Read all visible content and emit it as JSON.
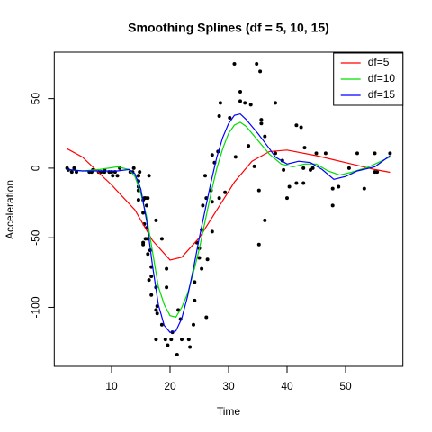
{
  "chart_data": {
    "type": "scatter",
    "title": "Smoothing Splines (df = 5, 10, 15)",
    "x_label": "Time",
    "y_label": "Acceleration",
    "xlim": [
      0.2,
      59.8
    ],
    "ylim": [
      -142.4,
      83.4
    ],
    "xticks": [
      10,
      20,
      30,
      40,
      50
    ],
    "yticks": [
      -100,
      -50,
      0,
      50
    ],
    "legend": "topright",
    "point_color": "#000000",
    "points": {
      "x": [
        2.4,
        2.6,
        3.2,
        3.6,
        4.0,
        6.2,
        6.6,
        6.8,
        7.8,
        8.2,
        8.8,
        8.8,
        9.6,
        10.0,
        10.2,
        10.6,
        11.0,
        11.4,
        13.2,
        13.6,
        13.8,
        14.6,
        14.6,
        14.6,
        14.6,
        14.6,
        14.6,
        14.8,
        15.4,
        15.4,
        15.4,
        15.4,
        15.6,
        15.6,
        15.8,
        15.8,
        16.0,
        16.0,
        16.2,
        16.2,
        16.2,
        16.4,
        16.4,
        16.6,
        16.8,
        16.8,
        16.8,
        17.6,
        17.6,
        17.6,
        17.6,
        17.8,
        17.8,
        18.6,
        18.6,
        19.2,
        19.4,
        19.4,
        19.6,
        20.2,
        20.4,
        21.2,
        21.4,
        21.8,
        22.0,
        23.2,
        23.4,
        24.0,
        24.2,
        24.2,
        24.6,
        25.0,
        25.0,
        25.4,
        25.4,
        25.6,
        26.0,
        26.2,
        26.2,
        26.4,
        27.0,
        27.2,
        27.2,
        27.2,
        27.6,
        28.2,
        28.4,
        28.4,
        28.6,
        29.4,
        30.2,
        31.0,
        31.2,
        32.0,
        32.0,
        32.8,
        33.4,
        33.8,
        34.4,
        34.8,
        35.2,
        35.2,
        35.4,
        35.6,
        35.6,
        36.2,
        36.2,
        38.0,
        38.0,
        39.2,
        39.4,
        40.0,
        40.4,
        41.6,
        41.6,
        42.4,
        42.8,
        42.8,
        43.0,
        44.0,
        44.4,
        45.0,
        46.6,
        47.8,
        47.8,
        48.8,
        50.6,
        52.0,
        53.2,
        55.0,
        55.0,
        55.4,
        57.6
      ],
      "y": [
        0.0,
        -1.3,
        -2.7,
        0.0,
        -2.7,
        -2.7,
        -2.7,
        -1.3,
        -2.7,
        -2.7,
        -1.3,
        -2.7,
        -2.7,
        -2.7,
        -5.4,
        -2.7,
        -5.4,
        0.0,
        -2.7,
        -2.7,
        0.0,
        -13.3,
        -5.4,
        -5.4,
        -9.3,
        -16.0,
        -22.8,
        -2.7,
        -22.8,
        -32.1,
        -53.5,
        -54.9,
        -40.2,
        -21.5,
        -21.5,
        -50.8,
        -42.9,
        -26.8,
        -21.5,
        -50.8,
        -61.7,
        -5.4,
        -80.4,
        -59.0,
        -71.0,
        -91.1,
        -77.7,
        -37.5,
        -85.6,
        -123.1,
        -101.9,
        -99.1,
        -104.4,
        -112.5,
        -50.8,
        -123.1,
        -85.6,
        -72.3,
        -127.2,
        -123.1,
        -117.9,
        -134.0,
        -101.9,
        -108.4,
        -123.1,
        -123.1,
        -128.5,
        -112.5,
        -95.1,
        -81.8,
        -53.5,
        -64.4,
        -57.6,
        -72.3,
        -44.3,
        -26.8,
        -5.4,
        -107.1,
        -21.5,
        -65.6,
        -16.0,
        -45.6,
        -24.2,
        9.5,
        4.0,
        12.0,
        -21.5,
        37.5,
        46.9,
        -17.4,
        36.2,
        75.0,
        8.1,
        54.9,
        48.2,
        46.9,
        16.0,
        45.6,
        1.3,
        75.0,
        -16.0,
        -54.9,
        69.6,
        34.8,
        32.1,
        -37.5,
        22.8,
        46.9,
        10.7,
        5.4,
        -1.3,
        -21.5,
        -13.3,
        30.8,
        -10.7,
        29.4,
        0.0,
        -10.7,
        14.7,
        -1.3,
        0.0,
        10.7,
        10.7,
        -26.8,
        -14.7,
        -13.3,
        0.0,
        10.7,
        -14.7,
        -2.7,
        10.7,
        -2.7,
        10.7
      ]
    },
    "series": [
      {
        "name": "df=5",
        "color": "#ff0000",
        "x": [
          2.4,
          5,
          10,
          14,
          17,
          20,
          22,
          25,
          28,
          31,
          34,
          37,
          40,
          45,
          50,
          55,
          57.6
        ],
        "values": [
          14,
          8,
          -12,
          -30,
          -52,
          -66,
          -64,
          -50,
          -30,
          -10,
          5,
          12,
          13,
          9,
          4,
          -1,
          -3
        ]
      },
      {
        "name": "df=10",
        "color": "#00dd00",
        "x": [
          2.4,
          5,
          8,
          11,
          13,
          14,
          15,
          16,
          17,
          18,
          19,
          20,
          21,
          22,
          23,
          24,
          25,
          26,
          27,
          28,
          29,
          30,
          31,
          32,
          33,
          35,
          37,
          39,
          41,
          43,
          45,
          47,
          49,
          51,
          54,
          57.6
        ],
        "values": [
          -1,
          -2,
          -1,
          1,
          -1,
          -6,
          -18,
          -35,
          -60,
          -85,
          -98,
          -106,
          -107,
          -100,
          -90,
          -75,
          -58,
          -38,
          -18,
          0,
          14,
          25,
          31,
          33,
          30,
          20,
          10,
          3,
          1,
          3,
          3,
          -2,
          -5,
          -3,
          1,
          8
        ]
      },
      {
        "name": "df=15",
        "color": "#0000ff",
        "x": [
          2.4,
          5,
          8,
          11,
          13,
          14,
          15,
          16,
          17,
          18,
          19,
          20,
          21,
          22,
          23,
          24,
          25,
          26,
          27,
          28,
          29,
          30,
          31,
          32,
          33,
          35,
          37,
          38,
          40,
          42,
          44,
          46,
          48,
          50,
          52,
          55,
          57.6
        ],
        "values": [
          -1,
          -2,
          -2,
          -2,
          -1,
          -4,
          -15,
          -38,
          -70,
          -98,
          -113,
          -118,
          -117,
          -108,
          -92,
          -72,
          -50,
          -30,
          -10,
          8,
          22,
          32,
          38,
          39,
          35,
          25,
          14,
          8,
          3,
          5,
          4,
          -1,
          -8,
          -6,
          -2,
          1,
          9
        ]
      }
    ]
  }
}
